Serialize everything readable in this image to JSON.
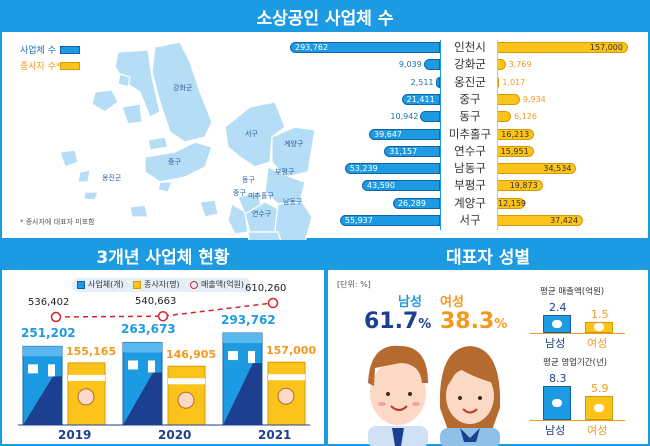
{
  "top": {
    "title": "소상공인 사업체 수",
    "legend": {
      "business": "사업체 수",
      "workers": "종사자 수*"
    },
    "footnote": "* 종사자에 대표자 미포함",
    "map_labels": [
      "강화군",
      "서구",
      "계양구",
      "중구",
      "옹진군",
      "동구",
      "부평구",
      "중구",
      "미추홀구",
      "남동구",
      "연수구"
    ]
  },
  "left": {
    "title": "3개년 사업체 현황",
    "legend": {
      "business": "사업체(개)",
      "workers": "종사자(명)",
      "sales": "매출액(억원)"
    }
  },
  "right": {
    "title": "대표자 성별",
    "unit": "[단위: %]",
    "male_label": "남성",
    "female_label": "여성",
    "male_pct": "61.7",
    "female_pct": "38.3",
    "pct_sign": "%",
    "sales_title": "평균 매출액(억원)",
    "period_title": "평균 영업기간(년)"
  },
  "colors": {
    "blue": "#1d9be2",
    "navy": "#1d3f8f",
    "orange": "#f39a1e",
    "yellow": "#fcc41a",
    "map": "#b5ddf5",
    "red": "#d8232a"
  },
  "chart_data": [
    {
      "type": "bar",
      "title": "소상공인 사업체 수",
      "categories": [
        "인천시",
        "강화군",
        "옹진군",
        "중구",
        "동구",
        "미추홀구",
        "연수구",
        "남동구",
        "부평구",
        "계양구",
        "서구"
      ],
      "series": [
        {
          "name": "사업체 수",
          "values": [
            293762,
            9039,
            2511,
            21411,
            10942,
            39647,
            31157,
            53239,
            43590,
            26289,
            55937
          ],
          "labels": [
            "293,762",
            "9,039",
            "2,511",
            "21,411",
            "10,942",
            "39,647",
            "31,157",
            "53,239",
            "43,590",
            "26,289",
            "55,937"
          ]
        },
        {
          "name": "종사자 수*",
          "values": [
            157000,
            3769,
            1017,
            9934,
            6126,
            16213,
            15951,
            34534,
            19873,
            12159,
            37424
          ],
          "labels": [
            "157,000",
            "3,769",
            "1,017",
            "9,934",
            "6,126",
            "16,213",
            "15,951",
            "34,534",
            "19,873",
            "12,159",
            "37,424"
          ]
        }
      ]
    },
    {
      "type": "bar",
      "title": "3개년 사업체 현황",
      "categories": [
        "2019",
        "2020",
        "2021"
      ],
      "series": [
        {
          "name": "사업체(개)",
          "values": [
            251202,
            263673,
            293762
          ],
          "labels": [
            "251,202",
            "263,673",
            "293,762"
          ]
        },
        {
          "name": "종사자(명)",
          "values": [
            155165,
            146905,
            157000
          ],
          "labels": [
            "155,165",
            "146,905",
            "157,000"
          ]
        },
        {
          "name": "매출액(억원)",
          "type": "line",
          "values": [
            536402,
            540663,
            610260
          ],
          "labels": [
            "536,402",
            "540,663",
            "610,260"
          ]
        }
      ]
    },
    {
      "type": "bar",
      "title": "평균 매출액(억원)",
      "categories": [
        "남성",
        "여성"
      ],
      "values": [
        2.4,
        1.5
      ],
      "labels": [
        "2.4",
        "1.5"
      ]
    },
    {
      "type": "bar",
      "title": "평균 영업기간(년)",
      "categories": [
        "남성",
        "여성"
      ],
      "values": [
        8.3,
        5.9
      ],
      "labels": [
        "8.3",
        "5.9"
      ]
    }
  ]
}
